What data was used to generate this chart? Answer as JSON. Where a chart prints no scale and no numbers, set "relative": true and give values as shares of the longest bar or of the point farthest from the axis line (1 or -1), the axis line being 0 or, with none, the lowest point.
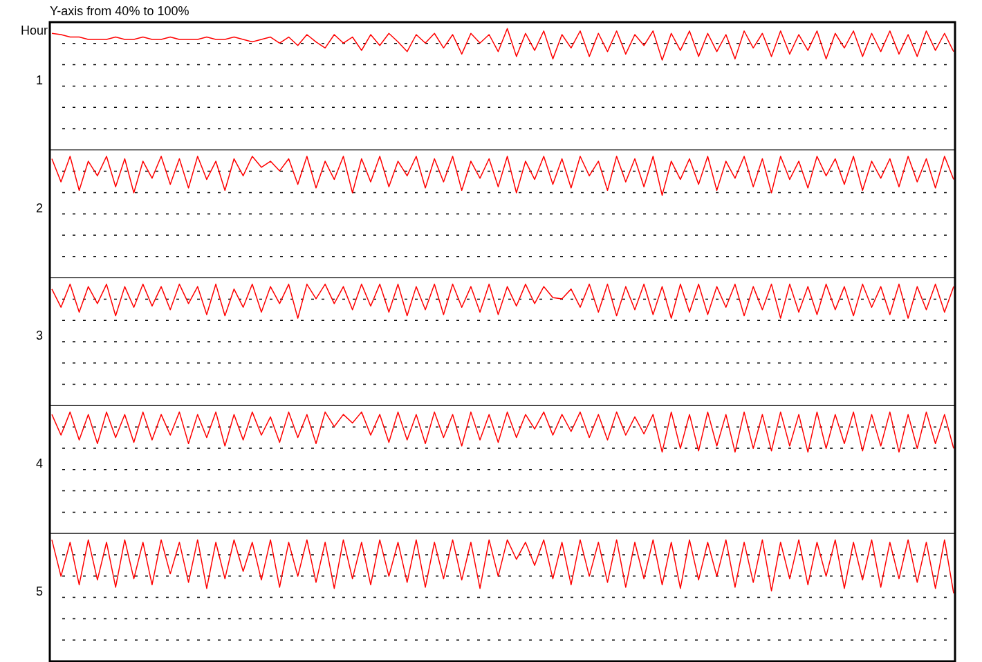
{
  "chart_data": [
    {
      "type": "line",
      "relative": true,
      "title": "Y-axis from 40% to 100%",
      "annotations": [
        "Hour"
      ],
      "ylabel": "1",
      "grid": "y",
      "categories": [
        null,
        null,
        null,
        null,
        null,
        null,
        null,
        null,
        null,
        null,
        null,
        null,
        null,
        null,
        null,
        null,
        null,
        null,
        null,
        null,
        null,
        null,
        null,
        null,
        null,
        null,
        null,
        null,
        null,
        null,
        null,
        null,
        null,
        null,
        null,
        null,
        null,
        null,
        null,
        null,
        null,
        null,
        null,
        null,
        null,
        null,
        null,
        null,
        null,
        null,
        null,
        null,
        null,
        null,
        null,
        null,
        null,
        null,
        null,
        null,
        null,
        null,
        null,
        null,
        null,
        null,
        null,
        null,
        null,
        null,
        null,
        null,
        null,
        null,
        null,
        null,
        null,
        null,
        null,
        null,
        null,
        null,
        null,
        null,
        null,
        null,
        null,
        null,
        null,
        null,
        null,
        null,
        null,
        null,
        null,
        null,
        null,
        null,
        null,
        null
      ],
      "series": [
        {
          "color": "#ff0000",
          "values": [
            0.96,
            0.95,
            0.93,
            0.93,
            0.91,
            0.91,
            0.91,
            0.93,
            0.91,
            0.91,
            0.93,
            0.91,
            0.91,
            0.93,
            0.91,
            0.91,
            0.91,
            0.93,
            0.91,
            0.91,
            0.93,
            0.91,
            0.89,
            0.91,
            0.93,
            0.88,
            0.93,
            0.86,
            0.95,
            0.89,
            0.84,
            0.95,
            0.88,
            0.93,
            0.82,
            0.95,
            0.86,
            0.96,
            0.89,
            0.81,
            0.95,
            0.88,
            0.96,
            0.84,
            0.95,
            0.79,
            0.96,
            0.88,
            0.95,
            0.81,
            1,
            0.77,
            0.96,
            0.82,
            0.98,
            0.75,
            0.95,
            0.84,
            0.98,
            0.77,
            0.96,
            0.81,
            0.98,
            0.79,
            0.95,
            0.86,
            0.98,
            0.74,
            0.96,
            0.82,
            0.98,
            0.77,
            0.96,
            0.81,
            0.95,
            0.75,
            0.98,
            0.84,
            0.96,
            0.77,
            0.98,
            0.79,
            0.95,
            0.82,
            0.98,
            0.75,
            0.96,
            0.84,
            0.98,
            0.77,
            0.96,
            0.81,
            0.98,
            0.79,
            0.95,
            0.77,
            0.98,
            0.82,
            0.96,
            0.81
          ]
        }
      ]
    },
    {
      "type": "line",
      "relative": true,
      "ylabel": "2",
      "grid": "y",
      "categories": [
        null,
        null,
        null,
        null,
        null,
        null,
        null,
        null,
        null,
        null,
        null,
        null,
        null,
        null,
        null,
        null,
        null,
        null,
        null,
        null,
        null,
        null,
        null,
        null,
        null,
        null,
        null,
        null,
        null,
        null,
        null,
        null,
        null,
        null,
        null,
        null,
        null,
        null,
        null,
        null,
        null,
        null,
        null,
        null,
        null,
        null,
        null,
        null,
        null,
        null,
        null,
        null,
        null,
        null,
        null,
        null,
        null,
        null,
        null,
        null,
        null,
        null,
        null,
        null,
        null,
        null,
        null,
        null,
        null,
        null,
        null,
        null,
        null,
        null,
        null,
        null,
        null,
        null,
        null,
        null,
        null,
        null,
        null,
        null,
        null,
        null,
        null,
        null,
        null,
        null,
        null,
        null,
        null,
        null,
        null,
        null,
        null,
        null,
        null,
        null
      ],
      "series": [
        {
          "color": "#ff0000",
          "values": [
            0.98,
            0.79,
            1,
            0.72,
            0.96,
            0.84,
            1,
            0.75,
            0.98,
            0.7,
            0.96,
            0.82,
            1,
            0.77,
            0.98,
            0.74,
            1,
            0.81,
            0.96,
            0.72,
            0.98,
            0.84,
            1,
            0.91,
            0.96,
            0.88,
            0.98,
            0.77,
            1,
            0.74,
            0.96,
            0.81,
            1,
            0.7,
            0.98,
            0.79,
            1,
            0.75,
            0.96,
            0.84,
            1,
            0.74,
            0.98,
            0.79,
            1,
            0.72,
            0.96,
            0.82,
            0.98,
            0.75,
            1,
            0.7,
            0.96,
            0.81,
            1,
            0.77,
            0.98,
            0.74,
            1,
            0.84,
            0.96,
            0.72,
            1,
            0.79,
            0.98,
            0.75,
            1,
            0.68,
            0.96,
            0.81,
            0.98,
            0.77,
            1,
            0.72,
            0.96,
            0.82,
            1,
            0.75,
            0.98,
            0.7,
            1,
            0.81,
            0.96,
            0.74,
            1,
            0.84,
            0.98,
            0.77,
            1,
            0.72,
            0.96,
            0.82,
            0.98,
            0.75,
            1,
            0.79,
            0.98,
            0.74,
            1,
            0.81
          ]
        }
      ]
    },
    {
      "type": "line",
      "relative": true,
      "ylabel": "3",
      "grid": "y",
      "categories": [
        null,
        null,
        null,
        null,
        null,
        null,
        null,
        null,
        null,
        null,
        null,
        null,
        null,
        null,
        null,
        null,
        null,
        null,
        null,
        null,
        null,
        null,
        null,
        null,
        null,
        null,
        null,
        null,
        null,
        null,
        null,
        null,
        null,
        null,
        null,
        null,
        null,
        null,
        null,
        null,
        null,
        null,
        null,
        null,
        null,
        null,
        null,
        null,
        null,
        null,
        null,
        null,
        null,
        null,
        null,
        null,
        null,
        null,
        null,
        null,
        null,
        null,
        null,
        null,
        null,
        null,
        null,
        null,
        null,
        null,
        null,
        null,
        null,
        null,
        null,
        null,
        null,
        null,
        null,
        null,
        null,
        null,
        null,
        null,
        null,
        null,
        null,
        null,
        null,
        null,
        null,
        null,
        null,
        null,
        null,
        null,
        null,
        null,
        null,
        null
      ],
      "series": [
        {
          "color": "#ff0000",
          "values": [
            0.96,
            0.81,
            1,
            0.77,
            0.98,
            0.84,
            1,
            0.74,
            0.98,
            0.81,
            1,
            0.82,
            0.98,
            0.79,
            1,
            0.84,
            0.98,
            0.75,
            1,
            0.74,
            0.96,
            0.81,
            1,
            0.77,
            0.98,
            0.84,
            1,
            0.72,
            1,
            0.88,
            1,
            0.84,
            0.98,
            0.79,
            1,
            0.82,
            1,
            0.77,
            1,
            0.74,
            0.98,
            0.79,
            1,
            0.75,
            1,
            0.81,
            0.98,
            0.77,
            1,
            0.75,
            0.98,
            0.82,
            1,
            0.84,
            0.98,
            0.89,
            0.88,
            0.96,
            0.81,
            1,
            0.77,
            1,
            0.74,
            0.98,
            0.79,
            1,
            0.75,
            0.98,
            0.72,
            1,
            0.77,
            1,
            0.75,
            0.98,
            0.81,
            1,
            0.74,
            0.98,
            0.79,
            1,
            0.72,
            1,
            0.77,
            0.98,
            0.75,
            1,
            0.79,
            0.98,
            0.74,
            1,
            0.81,
            0.98,
            0.75,
            1,
            0.72,
            0.98,
            0.79,
            1,
            0.77,
            0.98
          ]
        }
      ]
    },
    {
      "type": "line",
      "relative": true,
      "ylabel": "4",
      "grid": "y",
      "categories": [
        null,
        null,
        null,
        null,
        null,
        null,
        null,
        null,
        null,
        null,
        null,
        null,
        null,
        null,
        null,
        null,
        null,
        null,
        null,
        null,
        null,
        null,
        null,
        null,
        null,
        null,
        null,
        null,
        null,
        null,
        null,
        null,
        null,
        null,
        null,
        null,
        null,
        null,
        null,
        null,
        null,
        null,
        null,
        null,
        null,
        null,
        null,
        null,
        null,
        null,
        null,
        null,
        null,
        null,
        null,
        null,
        null,
        null,
        null,
        null,
        null,
        null,
        null,
        null,
        null,
        null,
        null,
        null,
        null,
        null,
        null,
        null,
        null,
        null,
        null,
        null,
        null,
        null,
        null,
        null,
        null,
        null,
        null,
        null,
        null,
        null,
        null,
        null,
        null,
        null,
        null,
        null,
        null,
        null,
        null,
        null,
        null,
        null,
        null,
        null
      ],
      "series": [
        {
          "color": "#ff0000",
          "values": [
            0.98,
            0.81,
            1,
            0.77,
            0.98,
            0.74,
            1,
            0.79,
            0.98,
            0.75,
            1,
            0.77,
            0.98,
            0.81,
            1,
            0.74,
            0.98,
            0.79,
            1,
            0.72,
            0.98,
            0.77,
            1,
            0.81,
            0.96,
            0.75,
            1,
            0.79,
            0.98,
            0.74,
            1,
            0.88,
            0.98,
            0.91,
            1,
            0.81,
            0.98,
            0.75,
            1,
            0.77,
            0.98,
            0.74,
            1,
            0.79,
            0.98,
            0.72,
            1,
            0.77,
            0.98,
            0.75,
            1,
            0.79,
            0.98,
            0.86,
            1,
            0.81,
            0.98,
            0.84,
            1,
            0.79,
            0.98,
            0.77,
            1,
            0.81,
            0.96,
            0.82,
            0.98,
            0.67,
            1,
            0.7,
            0.98,
            0.68,
            1,
            0.72,
            0.98,
            0.67,
            1,
            0.7,
            0.98,
            0.68,
            1,
            0.72,
            0.98,
            0.67,
            1,
            0.7,
            0.98,
            0.74,
            1,
            0.68,
            0.98,
            0.72,
            1,
            0.67,
            0.98,
            0.7,
            1,
            0.74,
            0.98,
            0.7
          ]
        }
      ]
    },
    {
      "type": "line",
      "relative": true,
      "ylabel": "5",
      "grid": "y",
      "categories": [
        null,
        null,
        null,
        null,
        null,
        null,
        null,
        null,
        null,
        null,
        null,
        null,
        null,
        null,
        null,
        null,
        null,
        null,
        null,
        null,
        null,
        null,
        null,
        null,
        null,
        null,
        null,
        null,
        null,
        null,
        null,
        null,
        null,
        null,
        null,
        null,
        null,
        null,
        null,
        null,
        null,
        null,
        null,
        null,
        null,
        null,
        null,
        null,
        null,
        null,
        null,
        null,
        null,
        null,
        null,
        null,
        null,
        null,
        null,
        null,
        null,
        null,
        null,
        null,
        null,
        null,
        null,
        null,
        null,
        null,
        null,
        null,
        null,
        null,
        null,
        null,
        null,
        null,
        null,
        null,
        null,
        null,
        null,
        null,
        null,
        null,
        null,
        null,
        null,
        null,
        null,
        null,
        null,
        null,
        null,
        null,
        null,
        null,
        null,
        null
      ],
      "series": [
        {
          "color": "#ff0000",
          "values": [
            1,
            0.7,
            0.98,
            0.63,
            1,
            0.67,
            0.98,
            0.61,
            1,
            0.68,
            0.98,
            0.63,
            1,
            0.72,
            0.98,
            0.65,
            1,
            0.6,
            0.98,
            0.68,
            1,
            0.74,
            0.98,
            0.67,
            1,
            0.61,
            0.98,
            0.7,
            1,
            0.65,
            0.98,
            0.6,
            1,
            0.68,
            0.98,
            0.63,
            1,
            0.7,
            0.98,
            0.65,
            1,
            0.61,
            0.98,
            0.68,
            1,
            0.67,
            0.98,
            0.6,
            1,
            0.7,
            1,
            0.84,
            0.98,
            0.79,
            1,
            0.68,
            0.98,
            0.63,
            1,
            0.7,
            0.98,
            0.65,
            1,
            0.61,
            0.98,
            0.68,
            1,
            0.63,
            0.98,
            0.6,
            1,
            0.67,
            0.98,
            0.7,
            1,
            0.61,
            0.98,
            0.65,
            1,
            0.58,
            0.98,
            0.68,
            1,
            0.63,
            0.98,
            0.7,
            1,
            0.6,
            0.98,
            0.67,
            1,
            0.61,
            0.98,
            0.68,
            1,
            0.65,
            0.98,
            0.6,
            1,
            0.56
          ]
        }
      ]
    }
  ]
}
